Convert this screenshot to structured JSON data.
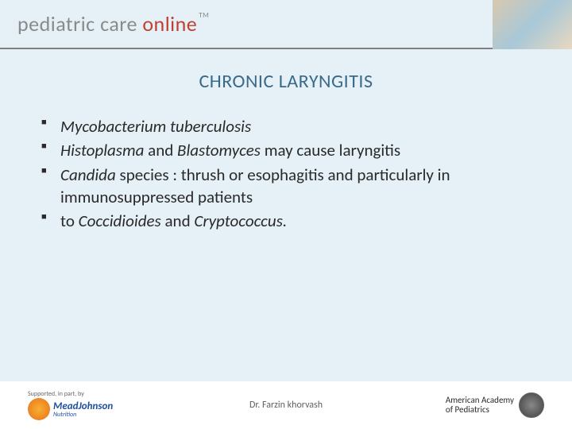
{
  "header": {
    "logo_word1": "pediatric",
    "logo_word2": "care",
    "logo_word3": "online",
    "tm": "TM"
  },
  "title": "CHRONIC LARYNGITIS",
  "bullets": [
    {
      "html": "<span class='italic'>Mycobacterium tuberculosis</span>"
    },
    {
      "html": " <span class='italic'>Histoplasma</span> and <span class='italic'>Blastomyces </span>may cause laryngitis"
    },
    {
      "html": "<span class='italic'>Candida</span> species : thrush or esophagitis and particularly in immunosuppressed patients"
    },
    {
      "html": "to <span class='italic'>Coccidioides</span> and <span class='italic'>Cryptococcus.</span>"
    }
  ],
  "footer": {
    "supported": "Supported, in part, by",
    "mj_name": "MeadJohnson",
    "mj_sub": "Nutrition",
    "center": "Dr. Farzin khorvash",
    "aap_line1": "American Academy",
    "aap_line2": "of Pediatrics"
  },
  "colors": {
    "background": "#e6f0f7",
    "title_color": "#3a6a8a",
    "text_color": "#2a2a2a",
    "divider": "#808080"
  }
}
